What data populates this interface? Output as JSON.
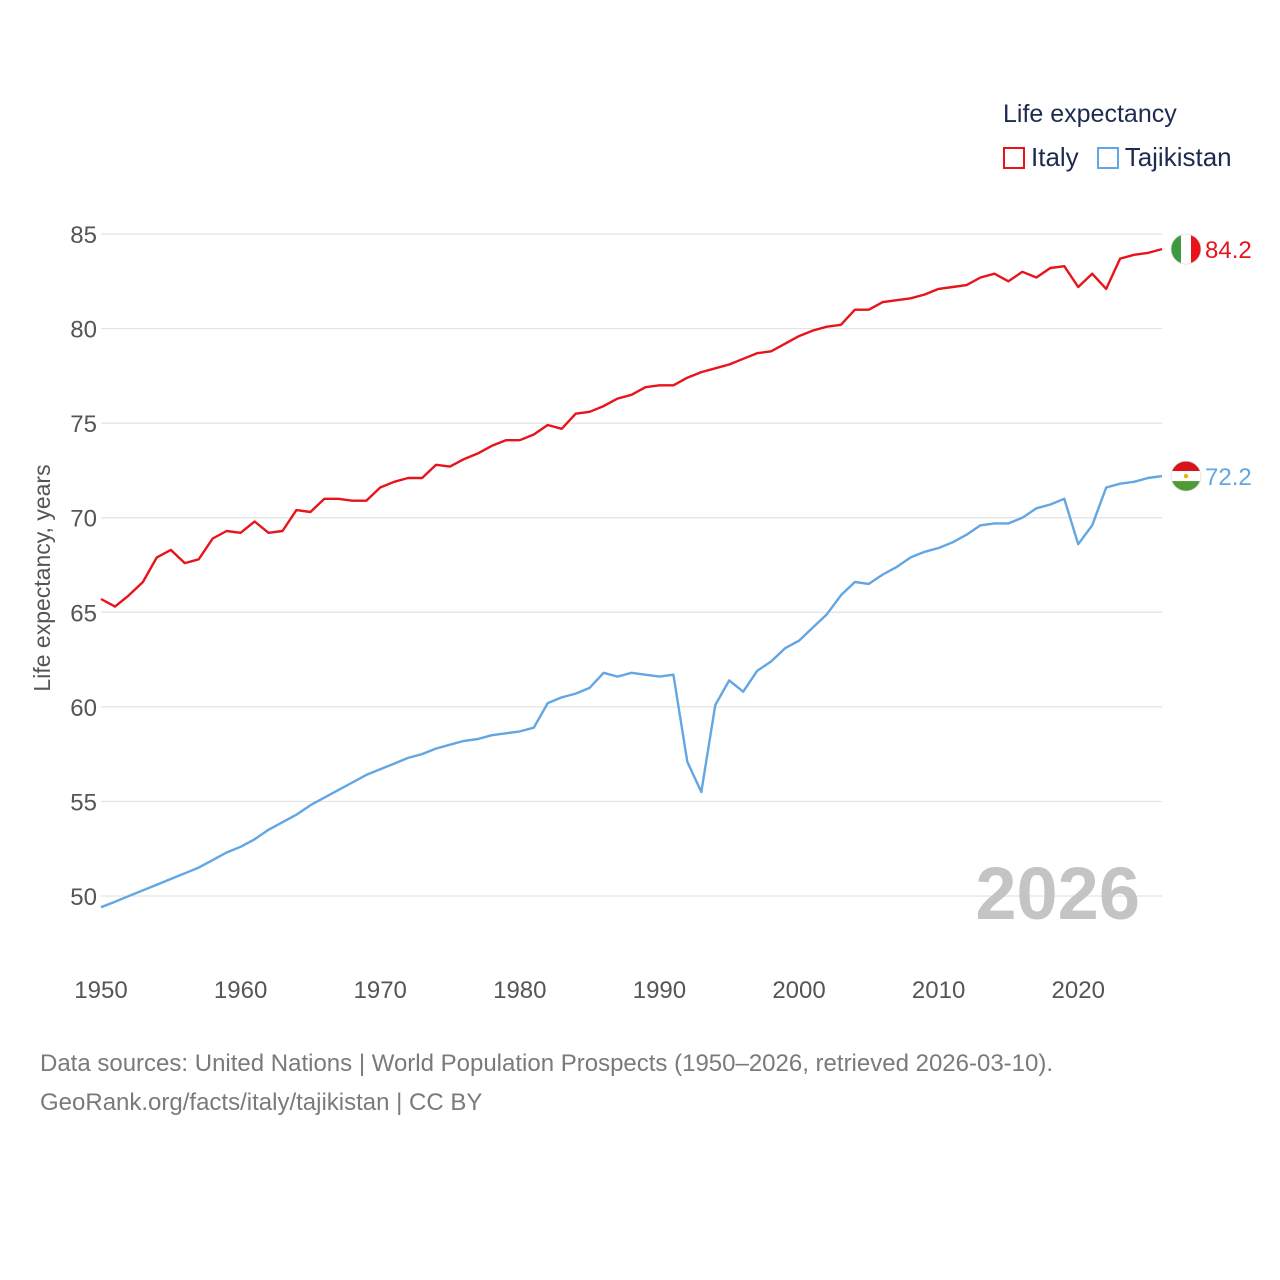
{
  "legend": {
    "title": "Life expectancy",
    "items": [
      {
        "label": "Italy",
        "color": "#e8131b"
      },
      {
        "label": "Tajikistan",
        "color": "#62a6e3"
      }
    ]
  },
  "footer": {
    "line1": "Data sources: United Nations | World Population Prospects (1950–2026, retrieved 2026-03-10).",
    "line2": "GeoRank.org/facts/italy/tajikistan | CC BY"
  },
  "chart_data": {
    "type": "line",
    "title": "Life expectancy",
    "xlabel": "",
    "ylabel": "Life expectancy, years",
    "xlim": [
      1950,
      2026
    ],
    "ylim": [
      48.3,
      85.5
    ],
    "yticks": [
      50,
      55,
      60,
      65,
      70,
      75,
      80,
      85
    ],
    "xticks": [
      1950,
      1960,
      1970,
      1980,
      1990,
      2000,
      2010,
      2020
    ],
    "year_label": "2026",
    "grid": true,
    "x": [
      1950,
      1951,
      1952,
      1953,
      1954,
      1955,
      1956,
      1957,
      1958,
      1959,
      1960,
      1961,
      1962,
      1963,
      1964,
      1965,
      1966,
      1967,
      1968,
      1969,
      1970,
      1971,
      1972,
      1973,
      1974,
      1975,
      1976,
      1977,
      1978,
      1979,
      1980,
      1981,
      1982,
      1983,
      1984,
      1985,
      1986,
      1987,
      1988,
      1989,
      1990,
      1991,
      1992,
      1993,
      1994,
      1995,
      1996,
      1997,
      1998,
      1999,
      2000,
      2001,
      2002,
      2003,
      2004,
      2005,
      2006,
      2007,
      2008,
      2009,
      2010,
      2011,
      2012,
      2013,
      2014,
      2015,
      2016,
      2017,
      2018,
      2019,
      2020,
      2021,
      2022,
      2023,
      2024,
      2025,
      2026
    ],
    "series": [
      {
        "name": "Italy",
        "color": "#e8131b",
        "end_label": "84.2",
        "values": [
          65.7,
          65.3,
          65.9,
          66.6,
          67.9,
          68.3,
          67.6,
          67.8,
          68.9,
          69.3,
          69.2,
          69.8,
          69.2,
          69.3,
          70.4,
          70.3,
          71.0,
          71.0,
          70.9,
          70.9,
          71.6,
          71.9,
          72.1,
          72.1,
          72.8,
          72.7,
          73.1,
          73.4,
          73.8,
          74.1,
          74.1,
          74.4,
          74.9,
          74.7,
          75.5,
          75.6,
          75.9,
          76.3,
          76.5,
          76.9,
          77.0,
          77.0,
          77.4,
          77.7,
          77.9,
          78.1,
          78.4,
          78.7,
          78.8,
          79.2,
          79.6,
          79.9,
          80.1,
          80.2,
          81.0,
          81.0,
          81.4,
          81.5,
          81.6,
          81.8,
          82.1,
          82.2,
          82.3,
          82.7,
          82.9,
          82.5,
          83.0,
          82.7,
          83.2,
          83.3,
          82.2,
          82.9,
          82.1,
          83.7,
          83.9,
          84.0,
          84.2
        ]
      },
      {
        "name": "Tajikistan",
        "color": "#62a6e3",
        "end_label": "72.2",
        "values": [
          49.4,
          49.7,
          50.0,
          50.3,
          50.6,
          50.9,
          51.2,
          51.5,
          51.9,
          52.3,
          52.6,
          53.0,
          53.5,
          53.9,
          54.3,
          54.8,
          55.2,
          55.6,
          56.0,
          56.4,
          56.7,
          57.0,
          57.3,
          57.5,
          57.8,
          58.0,
          58.2,
          58.3,
          58.5,
          58.6,
          58.7,
          58.9,
          60.2,
          60.5,
          60.7,
          61.0,
          61.8,
          61.6,
          61.8,
          61.7,
          61.6,
          61.7,
          57.1,
          55.5,
          60.1,
          61.4,
          60.8,
          61.9,
          62.4,
          63.1,
          63.5,
          64.2,
          64.9,
          65.9,
          66.6,
          66.5,
          67.0,
          67.4,
          67.9,
          68.2,
          68.4,
          68.7,
          69.1,
          69.6,
          69.7,
          69.7,
          70.0,
          70.5,
          70.7,
          71.0,
          68.6,
          69.6,
          71.6,
          71.8,
          71.9,
          72.1,
          72.2
        ]
      }
    ]
  }
}
